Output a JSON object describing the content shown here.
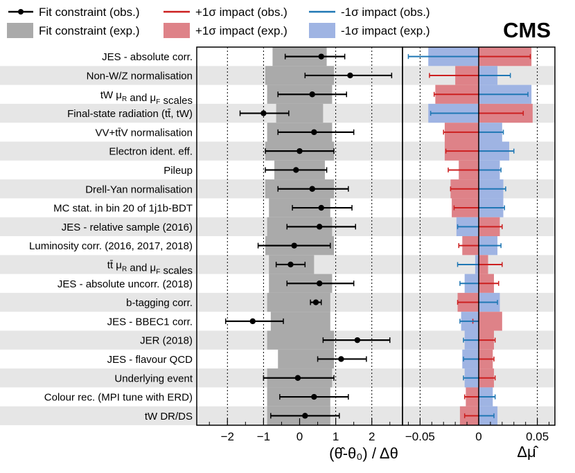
{
  "chart_data": {
    "type": "impact-pull",
    "experiment": "CMS",
    "legend": [
      {
        "key": "fit_obs",
        "label": "Fit constraint (obs.)"
      },
      {
        "key": "up_obs",
        "label": "+1σ impact (obs.)"
      },
      {
        "key": "down_obs",
        "label": "-1σ impact (obs.)"
      },
      {
        "key": "fit_exp",
        "label": "Fit constraint (exp.)"
      },
      {
        "key": "up_exp",
        "label": "+1σ impact (exp.)"
      },
      {
        "key": "down_exp",
        "label": "-1σ impact (exp.)"
      }
    ],
    "left_panel": {
      "xlabel": "(θ̂-θ₀) / Δθ",
      "xlim": [
        -2.85,
        2.85
      ],
      "ticks": [
        -2,
        -1,
        0,
        1,
        2
      ],
      "tick_labels": [
        "−2",
        "−1",
        "0",
        "1",
        "2"
      ],
      "dotted_lines": [
        -2,
        -1,
        1,
        2
      ]
    },
    "right_panel": {
      "xlabel": "Δμ̂",
      "xlim": [
        -0.065,
        0.065
      ],
      "ticks": [
        -0.05,
        0,
        0.05
      ],
      "tick_labels": [
        "−0.05",
        "0",
        "0.05"
      ]
    },
    "colors": {
      "fit_obs": "#000000",
      "fit_exp": "#aaaaaa",
      "up_obs": "#cc1f1f",
      "up_exp": "#de8288",
      "down_obs": "#1f77b4",
      "down_exp": "#9fb4e3",
      "band": "#e6e6e6"
    },
    "nuisances": [
      {
        "label": "JES - absolute corr.",
        "pull": 0.6,
        "lo": -0.4,
        "hi": 1.25,
        "exp_lo": -0.75,
        "exp_hi": 0.75,
        "up_obs": 0.044,
        "up_exp": 0.045,
        "down_obs": -0.06,
        "down_exp": -0.043
      },
      {
        "label": "Non-W/Z normalisation",
        "pull": 1.4,
        "lo": 0.15,
        "hi": 2.55,
        "exp_lo": -0.95,
        "exp_hi": 0.95,
        "up_obs": -0.042,
        "up_exp": -0.02,
        "down_obs": 0.027,
        "down_exp": 0.016
      },
      {
        "label": "tW μR and μF scales",
        "pull": 0.35,
        "lo": -0.6,
        "hi": 1.3,
        "exp_lo": -0.9,
        "exp_hi": 0.9,
        "up_obs": -0.038,
        "up_exp": -0.037,
        "down_obs": 0.042,
        "down_exp": 0.045
      },
      {
        "label": "Final-state radiation (tt̄, tW)",
        "pull": -1.0,
        "lo": -1.65,
        "hi": -0.3,
        "exp_lo": -0.65,
        "exp_hi": 0.65,
        "up_obs": 0.038,
        "up_exp": 0.046,
        "down_obs": -0.041,
        "down_exp": -0.043
      },
      {
        "label": "VV+tt̄V normalisation",
        "pull": 0.4,
        "lo": -0.6,
        "hi": 1.5,
        "exp_lo": -0.9,
        "exp_hi": 0.9,
        "up_obs": -0.03,
        "up_exp": -0.029,
        "down_obs": 0.021,
        "down_exp": 0.02
      },
      {
        "label": "Electron ident. eff.",
        "pull": 0.0,
        "lo": -0.95,
        "hi": 0.95,
        "exp_lo": -0.95,
        "exp_hi": 0.95,
        "up_obs": -0.028,
        "up_exp": -0.029,
        "down_obs": 0.03,
        "down_exp": 0.026
      },
      {
        "label": "Pileup",
        "pull": -0.1,
        "lo": -0.95,
        "hi": 0.75,
        "exp_lo": -0.7,
        "exp_hi": 0.7,
        "up_obs": -0.026,
        "up_exp": -0.017,
        "down_obs": 0.019,
        "down_exp": 0.018
      },
      {
        "label": "Drell-Yan normalisation",
        "pull": 0.35,
        "lo": -0.6,
        "hi": 1.35,
        "exp_lo": -0.95,
        "exp_hi": 0.95,
        "up_obs": -0.024,
        "up_exp": -0.024,
        "down_obs": 0.023,
        "down_exp": 0.021
      },
      {
        "label": "MC stat. in bin 20 of 1j1b-BDT",
        "pull": 0.6,
        "lo": -0.2,
        "hi": 1.45,
        "exp_lo": -0.85,
        "exp_hi": 0.85,
        "up_obs": -0.021,
        "up_exp": -0.023,
        "down_obs": 0.022,
        "down_exp": 0.021
      },
      {
        "label": "JES - relative sample (2016)",
        "pull": 0.55,
        "lo": -0.35,
        "hi": 1.55,
        "exp_lo": -0.9,
        "exp_hi": 0.9,
        "up_obs": 0.02,
        "up_exp": 0.018,
        "down_obs": -0.018,
        "down_exp": -0.019
      },
      {
        "label": "Luminosity corr. (2016, 2017, 2018)",
        "pull": -0.15,
        "lo": -1.15,
        "hi": 0.85,
        "exp_lo": -0.95,
        "exp_hi": 0.95,
        "up_obs": -0.017,
        "up_exp": -0.014,
        "down_obs": 0.019,
        "down_exp": 0.016
      },
      {
        "label": "tt̄ μR and μF scales",
        "pull": -0.25,
        "lo": -0.65,
        "hi": 0.15,
        "exp_lo": -0.85,
        "exp_hi": 0.4,
        "up_obs": 0.02,
        "up_exp": 0.008,
        "down_obs": -0.018,
        "down_exp": -0.003
      },
      {
        "label": "JES - absolute uncorr. (2018)",
        "pull": 0.55,
        "lo": -0.35,
        "hi": 1.5,
        "exp_lo": -0.85,
        "exp_hi": 0.9,
        "up_obs": 0.017,
        "up_exp": 0.013,
        "down_obs": -0.016,
        "down_exp": -0.012
      },
      {
        "label": "b-tagging corr.",
        "pull": 0.45,
        "lo": 0.3,
        "hi": 0.6,
        "exp_lo": -0.9,
        "exp_hi": 0.85,
        "up_obs": -0.018,
        "up_exp": -0.018,
        "down_obs": 0.016,
        "down_exp": 0.018
      },
      {
        "label": "JES - BBEC1 corr.",
        "pull": -1.3,
        "lo": -2.05,
        "hi": -0.45,
        "exp_lo": -0.8,
        "exp_hi": 0.85,
        "up_obs": -0.005,
        "up_exp": 0.02,
        "down_obs": -0.016,
        "down_exp": -0.015
      },
      {
        "label": "JER (2018)",
        "pull": 1.6,
        "lo": 0.65,
        "hi": 2.5,
        "exp_lo": -0.9,
        "exp_hi": 0.95,
        "up_obs": 0.014,
        "up_exp": 0.013,
        "down_obs": -0.013,
        "down_exp": -0.012
      },
      {
        "label": "JES - flavour QCD",
        "pull": 1.15,
        "lo": 0.5,
        "hi": 1.85,
        "exp_lo": -0.6,
        "exp_hi": 0.95,
        "up_obs": 0.013,
        "up_exp": 0.012,
        "down_obs": -0.013,
        "down_exp": -0.014
      },
      {
        "label": "Underlying event",
        "pull": -0.05,
        "lo": -1.0,
        "hi": 0.95,
        "exp_lo": -0.9,
        "exp_hi": 0.9,
        "up_obs": 0.014,
        "up_exp": 0.013,
        "down_obs": -0.013,
        "down_exp": -0.012
      },
      {
        "label": "Colour rec. (MPI tune with ERD)",
        "pull": 0.4,
        "lo": -0.55,
        "hi": 1.35,
        "exp_lo": -0.9,
        "exp_hi": 0.85,
        "up_obs": -0.012,
        "up_exp": -0.011,
        "down_obs": 0.014,
        "down_exp": 0.012
      },
      {
        "label": "tW DR/DS",
        "pull": 0.15,
        "lo": -0.8,
        "hi": 1.1,
        "exp_lo": -0.9,
        "exp_hi": 0.85,
        "up_obs": -0.012,
        "up_exp": -0.016,
        "down_obs": 0.013,
        "down_exp": 0.016
      }
    ]
  }
}
